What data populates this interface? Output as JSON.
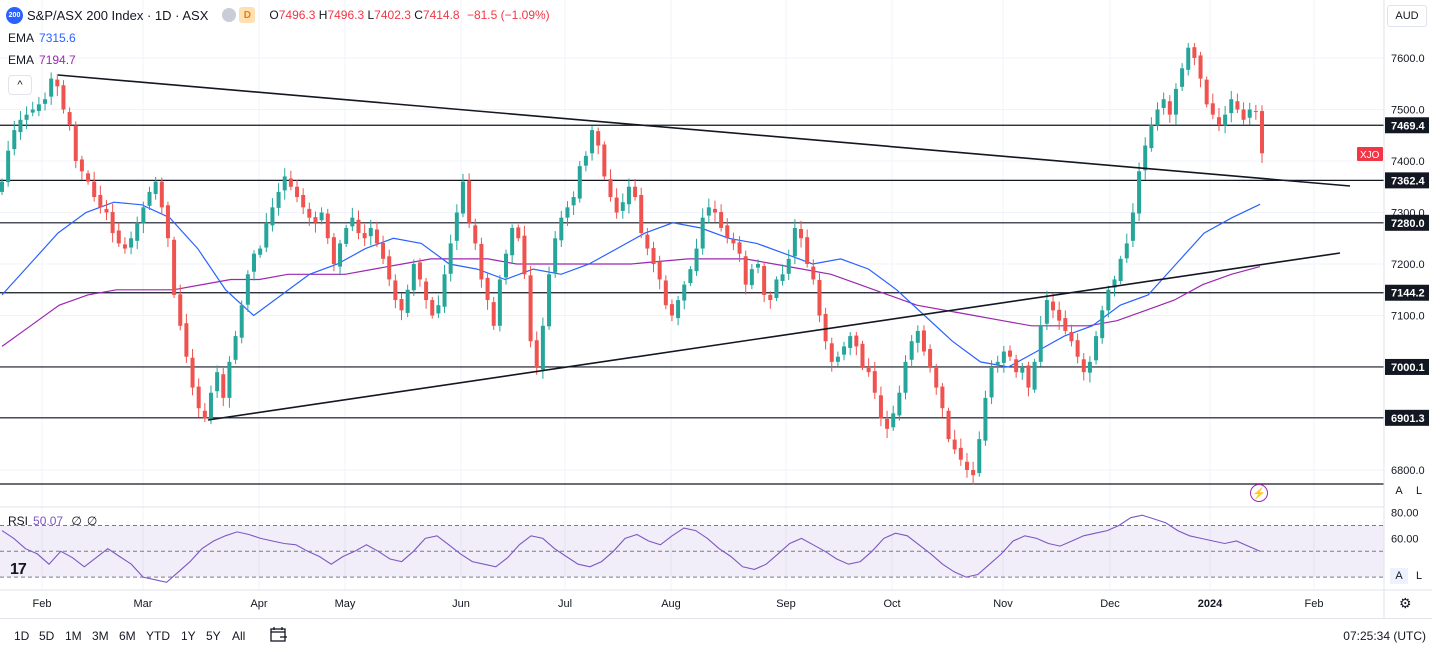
{
  "header": {
    "logo_text": "200",
    "symbol": "S&P/ASX 200 Index · 1D · ASX",
    "d_badge": "D",
    "o_label": "O",
    "o_value": "7496.3",
    "h_label": "H",
    "h_value": "7496.3",
    "l_label": "L",
    "l_value": "7402.3",
    "c_label": "C",
    "c_value": "7414.8",
    "change": "−81.5 (−1.09%)"
  },
  "indicators": {
    "ema1_label": "EMA",
    "ema1_value": "7315.6",
    "ema2_label": "EMA",
    "ema2_value": "7194.7",
    "collapse_icon": "^",
    "rsi_label": "RSI",
    "rsi_value": "50.07",
    "rsi_extra1": "∅",
    "rsi_extra2": "∅"
  },
  "currency": "AUD",
  "price_axis": {
    "ticks": [
      "7600.0",
      "7500.0",
      "7400.0",
      "7300.0",
      "7200.0",
      "7100.0",
      "7000.0",
      "6900.0",
      "6800.0"
    ],
    "level_labels": [
      "7469.4",
      "7362.4",
      "7280.0",
      "7144.2",
      "7000.1",
      "6901.3"
    ],
    "symbol_tag": "XJO"
  },
  "rsi_axis": {
    "ticks": [
      "80.00",
      "60.00"
    ]
  },
  "time_axis": [
    "Feb",
    "Mar",
    "Apr",
    "May",
    "Jun",
    "Jul",
    "Aug",
    "Sep",
    "Oct",
    "Nov",
    "Dec",
    "2024",
    "Feb"
  ],
  "scale_buttons": {
    "a": "A",
    "l": "L"
  },
  "timeframes": [
    "1D",
    "5D",
    "1M",
    "3M",
    "6M",
    "YTD",
    "1Y",
    "5Y",
    "All"
  ],
  "clock": "07:25:34 (UTC)",
  "branding": "17",
  "colors": {
    "up": "#26a69a",
    "down": "#ef5350",
    "ema_fast": "#2962ff",
    "ema_slow": "#9c27b0",
    "rsi": "#7e57c2"
  },
  "chart_data": {
    "type": "candlestick",
    "title": "S&P/ASX 200 Index · 1D · ASX",
    "ylim": [
      6770,
      7640
    ],
    "horizontal_levels": [
      7469.4,
      7362.4,
      7280.0,
      7144.2,
      7000.1,
      6901.3,
      6770
    ],
    "trendlines": [
      {
        "from": [
          "2023-02-06",
          7570
        ],
        "to": [
          "2024-02-20",
          7350
        ]
      },
      {
        "from": [
          "2023-03-20",
          6895
        ],
        "to": [
          "2024-02-20",
          7220
        ]
      }
    ],
    "candles_anchor": "2023-01-26",
    "close_path": [
      7360,
      7420,
      7460,
      7480,
      7490,
      7500,
      7510,
      7520,
      7560,
      7545,
      7500,
      7470,
      7400,
      7380,
      7360,
      7330,
      7310,
      7300,
      7260,
      7240,
      7230,
      7250,
      7280,
      7310,
      7340,
      7360,
      7310,
      7250,
      7140,
      7080,
      7020,
      6960,
      6920,
      6900,
      6950,
      6990,
      6940,
      7010,
      7060,
      7120,
      7180,
      7220,
      7230,
      7280,
      7310,
      7340,
      7370,
      7350,
      7330,
      7310,
      7290,
      7280,
      7300,
      7250,
      7200,
      7240,
      7270,
      7290,
      7260,
      7250,
      7270,
      7240,
      7210,
      7170,
      7130,
      7110,
      7150,
      7200,
      7170,
      7130,
      7100,
      7120,
      7180,
      7240,
      7300,
      7360,
      7280,
      7240,
      7170,
      7130,
      7080,
      7170,
      7220,
      7270,
      7250,
      7180,
      7050,
      7000,
      7080,
      7180,
      7250,
      7290,
      7310,
      7330,
      7390,
      7410,
      7460,
      7430,
      7370,
      7330,
      7300,
      7320,
      7350,
      7330,
      7260,
      7230,
      7200,
      7170,
      7120,
      7100,
      7130,
      7160,
      7190,
      7230,
      7290,
      7310,
      7300,
      7270,
      7250,
      7240,
      7220,
      7160,
      7190,
      7200,
      7140,
      7130,
      7170,
      7180,
      7210,
      7270,
      7250,
      7200,
      7170,
      7100,
      7050,
      7010,
      7020,
      7040,
      7060,
      7040,
      7000,
      6990,
      6950,
      6900,
      6880,
      6910,
      6950,
      7010,
      7050,
      7070,
      7030,
      7000,
      6960,
      6920,
      6860,
      6840,
      6820,
      6800,
      6790,
      6860,
      6940,
      7000,
      7010,
      7030,
      7020,
      6990,
      7000,
      6960,
      7010,
      7080,
      7130,
      7110,
      7090,
      7070,
      7050,
      7020,
      6990,
      7010,
      7060,
      7110,
      7150,
      7170,
      7210,
      7240,
      7300,
      7380,
      7430,
      7470,
      7500,
      7520,
      7490,
      7540,
      7580,
      7620,
      7600,
      7560,
      7510,
      7490,
      7470,
      7490,
      7520,
      7500,
      7480,
      7500,
      7496,
      7415
    ],
    "ema_fast_path": [
      7140,
      7200,
      7260,
      7300,
      7320,
      7315,
      7290,
      7230,
      7150,
      7100,
      7140,
      7180,
      7200,
      7230,
      7250,
      7240,
      7200,
      7190,
      7170,
      7190,
      7180,
      7200,
      7230,
      7260,
      7280,
      7270,
      7250,
      7240,
      7220,
      7200,
      7210,
      7190,
      7150,
      7100,
      7050,
      7010,
      7000,
      7030,
      7060,
      7080,
      7120,
      7140,
      7200,
      7260,
      7290,
      7316
    ],
    "ema_slow_path": [
      7040,
      7080,
      7120,
      7140,
      7150,
      7150,
      7150,
      7160,
      7170,
      7170,
      7180,
      7180,
      7180,
      7190,
      7200,
      7210,
      7210,
      7210,
      7200,
      7200,
      7200,
      7200,
      7200,
      7205,
      7210,
      7210,
      7210,
      7200,
      7190,
      7180,
      7160,
      7140,
      7120,
      7110,
      7100,
      7090,
      7080,
      7080,
      7080,
      7090,
      7110,
      7130,
      7160,
      7180,
      7195
    ],
    "rsi": {
      "ylim": [
        20,
        82
      ],
      "ticks": [
        80,
        60
      ],
      "bands": [
        70,
        30
      ],
      "path": [
        66,
        60,
        52,
        48,
        40,
        50,
        45,
        38,
        45,
        52,
        46,
        40,
        30,
        28,
        26,
        34,
        42,
        52,
        58,
        62,
        65,
        63,
        60,
        58,
        56,
        55,
        50,
        46,
        40,
        46,
        50,
        55,
        50,
        44,
        42,
        50,
        60,
        62,
        55,
        48,
        42,
        40,
        38,
        45,
        55,
        62,
        60,
        52,
        46,
        40,
        38,
        42,
        50,
        60,
        63,
        58,
        55,
        62,
        68,
        66,
        60,
        52,
        46,
        38,
        36,
        40,
        48,
        56,
        60,
        55,
        50,
        44,
        40,
        42,
        50,
        60,
        64,
        62,
        55,
        48,
        40,
        34,
        30,
        32,
        40,
        48,
        58,
        62,
        60,
        56,
        54,
        58,
        62,
        64,
        66,
        70,
        76,
        78,
        75,
        72,
        66,
        62,
        60,
        58,
        56,
        58,
        54,
        50
      ]
    }
  }
}
